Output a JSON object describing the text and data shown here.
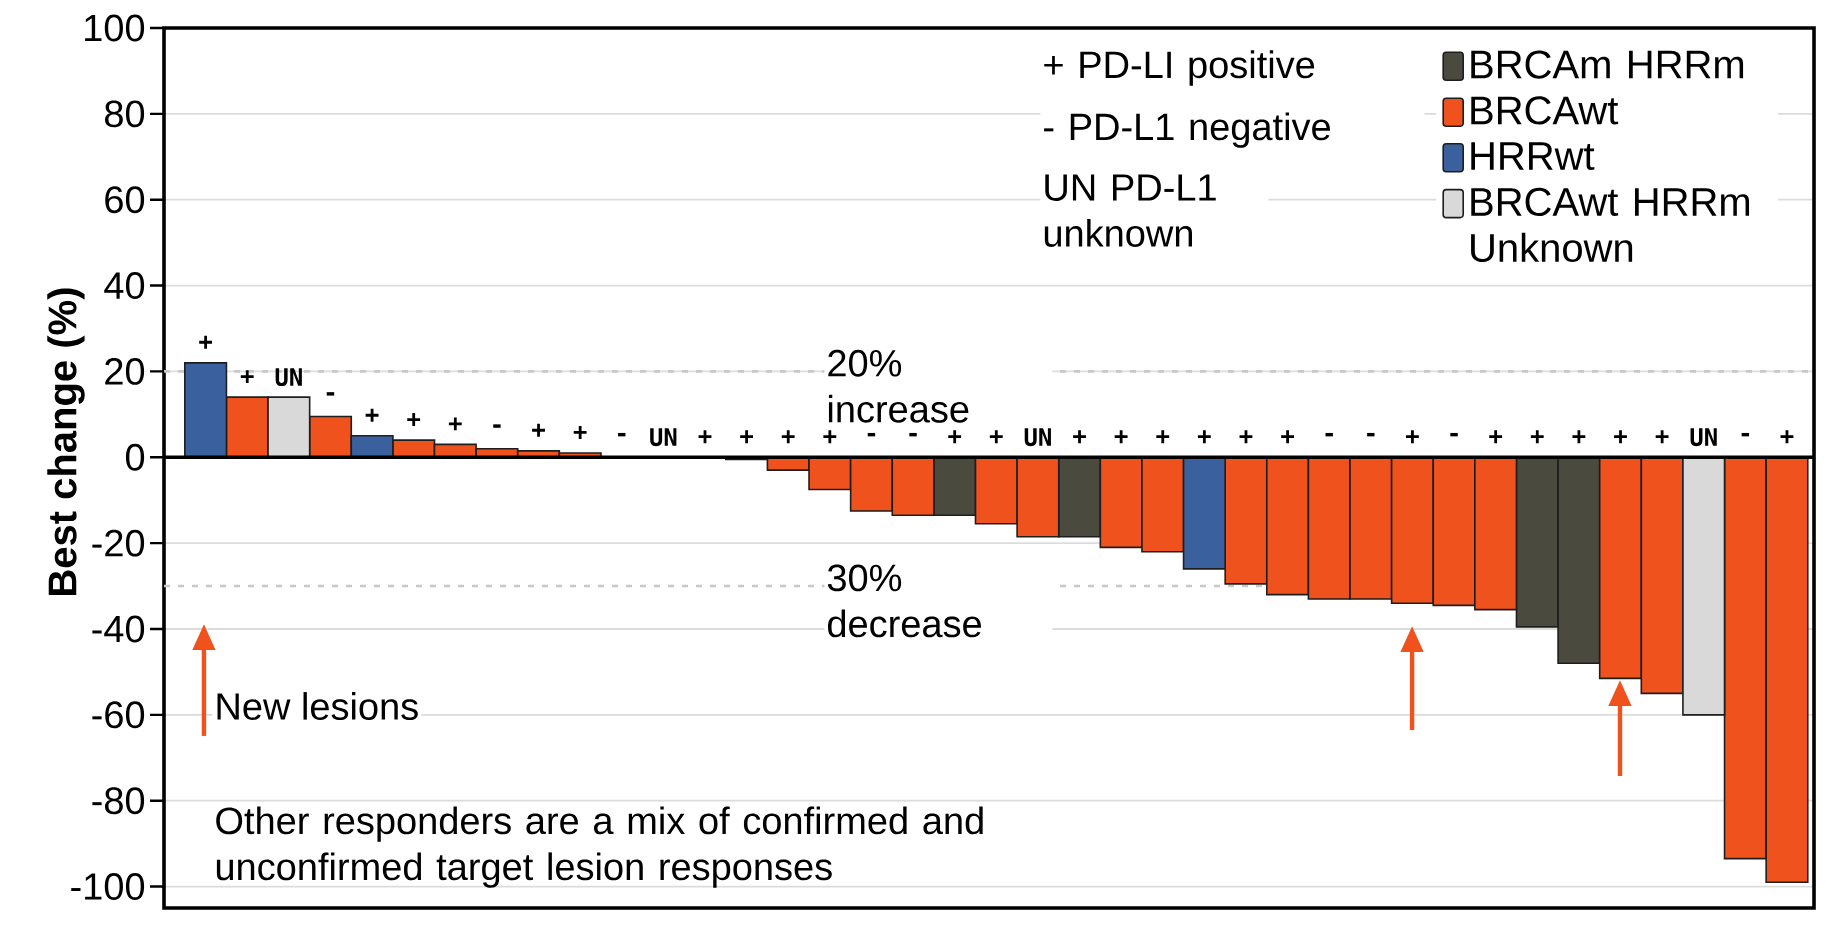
{
  "chart_data": {
    "type": "bar",
    "ylabel": "Best change (%)",
    "categories": [
      null,
      null,
      null,
      null,
      null,
      null,
      null,
      null,
      null,
      null,
      null,
      null,
      null,
      null,
      null,
      null,
      null,
      null,
      null,
      null,
      null,
      null,
      null,
      null,
      null,
      null,
      null,
      null,
      null,
      null,
      null,
      null,
      null,
      null,
      null,
      null,
      null,
      null,
      null
    ],
    "series": [
      {
        "name": "BRCAm HRRm",
        "color": "#4b4a3e",
        "values": [
          null,
          null,
          null,
          null,
          null,
          null,
          null,
          null,
          null,
          null,
          null,
          null,
          null,
          null,
          null,
          null,
          null,
          null,
          -13.5,
          null,
          null,
          -18.5,
          null,
          null,
          null,
          null,
          null,
          null,
          null,
          null,
          null,
          null,
          -39.5,
          -48,
          null,
          null,
          null,
          null,
          null
        ],
        "value_labels": [
          null,
          null,
          null,
          null,
          null,
          null,
          null,
          null,
          null,
          null,
          null,
          null,
          null,
          null,
          null,
          null,
          null,
          null,
          "+",
          null,
          null,
          "+",
          null,
          null,
          null,
          null,
          null,
          null,
          null,
          null,
          null,
          null,
          "+",
          "+",
          null,
          null,
          null,
          null,
          null
        ]
      },
      {
        "name": "BRCAwt",
        "color": "#f0521e",
        "values": [
          null,
          14,
          null,
          9.5,
          null,
          4,
          3,
          2,
          1.5,
          1,
          0,
          0,
          0,
          -0.5,
          -3,
          -7.5,
          -12.5,
          -13.5,
          null,
          -15.5,
          -18.5,
          null,
          -21,
          -22,
          null,
          -29.5,
          -32,
          -33,
          -33,
          -34,
          -34.5,
          -35.5,
          null,
          null,
          -51.5,
          -55,
          null,
          -93.5,
          -99
        ],
        "value_labels": [
          null,
          "+",
          null,
          "-",
          null,
          "+",
          "+",
          "-",
          "+",
          "+",
          "-",
          "UN",
          "+",
          "+",
          "+",
          "+",
          "-",
          "-",
          null,
          "+",
          "UN",
          null,
          "+",
          "+",
          null,
          "+",
          "+",
          "-",
          "-",
          "+",
          "-",
          "+",
          null,
          null,
          "+",
          "+",
          null,
          "-",
          "+"
        ]
      },
      {
        "name": "HRRwt",
        "color": "#3a619e",
        "values": [
          22,
          null,
          null,
          null,
          5,
          null,
          null,
          null,
          null,
          null,
          null,
          null,
          null,
          null,
          null,
          null,
          null,
          null,
          null,
          null,
          null,
          null,
          null,
          null,
          -26,
          null,
          null,
          null,
          null,
          null,
          null,
          null,
          null,
          null,
          null,
          null,
          null,
          null,
          null
        ],
        "value_labels": [
          "+",
          null,
          null,
          null,
          "+",
          null,
          null,
          null,
          null,
          null,
          null,
          null,
          null,
          null,
          null,
          null,
          null,
          null,
          null,
          null,
          null,
          null,
          null,
          null,
          "+",
          null,
          null,
          null,
          null,
          null,
          null,
          null,
          null,
          null,
          null,
          null,
          null,
          null,
          null
        ]
      },
      {
        "name": "BRCAwt HRRm Unknown",
        "color": "#d9d9d9",
        "values": [
          null,
          null,
          14,
          null,
          null,
          null,
          null,
          null,
          null,
          null,
          null,
          null,
          null,
          null,
          null,
          null,
          null,
          null,
          null,
          null,
          null,
          null,
          null,
          null,
          null,
          null,
          null,
          null,
          null,
          null,
          null,
          null,
          null,
          null,
          null,
          null,
          -60,
          null,
          null
        ],
        "value_labels": [
          null,
          null,
          "UN",
          null,
          null,
          null,
          null,
          null,
          null,
          null,
          null,
          null,
          null,
          null,
          null,
          null,
          null,
          null,
          null,
          null,
          null,
          null,
          null,
          null,
          null,
          null,
          null,
          null,
          null,
          null,
          null,
          null,
          null,
          null,
          null,
          null,
          "UN",
          null,
          null
        ]
      }
    ],
    "ylim": [
      -105,
      100
    ],
    "yticks": [
      -100,
      -80,
      -60,
      -40,
      -20,
      0,
      20,
      40,
      60,
      80,
      100
    ],
    "grid": "y",
    "legend": "top right",
    "ref_lines": [
      {
        "axis": "y",
        "value": 20,
        "label": "20% increase",
        "color": "#c8c8c8",
        "line_style": "dashed"
      },
      {
        "axis": "y",
        "value": -30,
        "label": "30% decrease",
        "color": "#c8c8c8",
        "line_style": "dashed"
      }
    ],
    "annotations": [
      "+ PD-LI positive",
      "- PD-L1 negative",
      "UN PD-L1 unknown",
      "New lesions",
      "Other responders are a mix of confirmed and unconfirmed target lesion responses"
    ]
  }
}
